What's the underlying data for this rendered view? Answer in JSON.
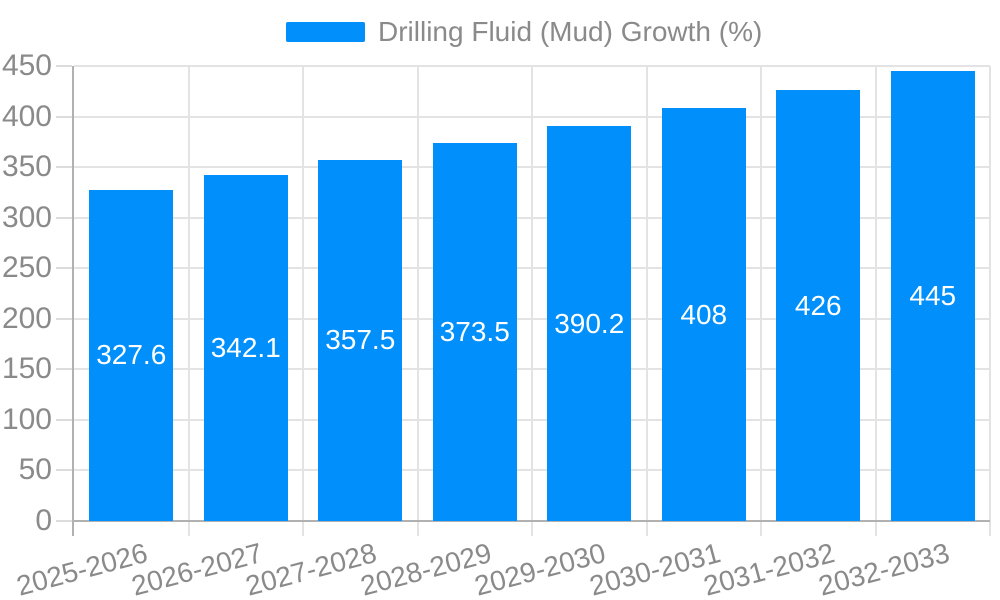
{
  "chart_data": {
    "type": "bar",
    "title": "",
    "xlabel": "",
    "ylabel": "",
    "categories": [
      "2025-2026",
      "2026-2027",
      "2027-2028",
      "2028-2029",
      "2029-2030",
      "2030-2031",
      "2031-2032",
      "2032-2033"
    ],
    "series": [
      {
        "name": "Drilling Fluid (Mud) Growth (%)",
        "color": "#008FFB",
        "values": [
          327.6,
          342.1,
          357.5,
          373.5,
          390.2,
          408,
          426,
          445
        ],
        "labels": [
          "327.6",
          "342.1",
          "357.5",
          "373.5",
          "390.2",
          "408",
          "426",
          "445"
        ]
      }
    ],
    "ylim": [
      0,
      450
    ],
    "yticks": [
      0,
      50,
      100,
      150,
      200,
      250,
      300,
      350,
      400,
      450
    ],
    "grid": true,
    "legend_position": "top",
    "colors": {
      "bar": "#008FFB",
      "data_label": "#ffffff",
      "axis_label": "#8a8a8a",
      "grid_line": "#e3e3e3",
      "tick_line": "#dcdcdc",
      "axis_line": "#b1b1b1",
      "background": "#ffffff"
    }
  }
}
